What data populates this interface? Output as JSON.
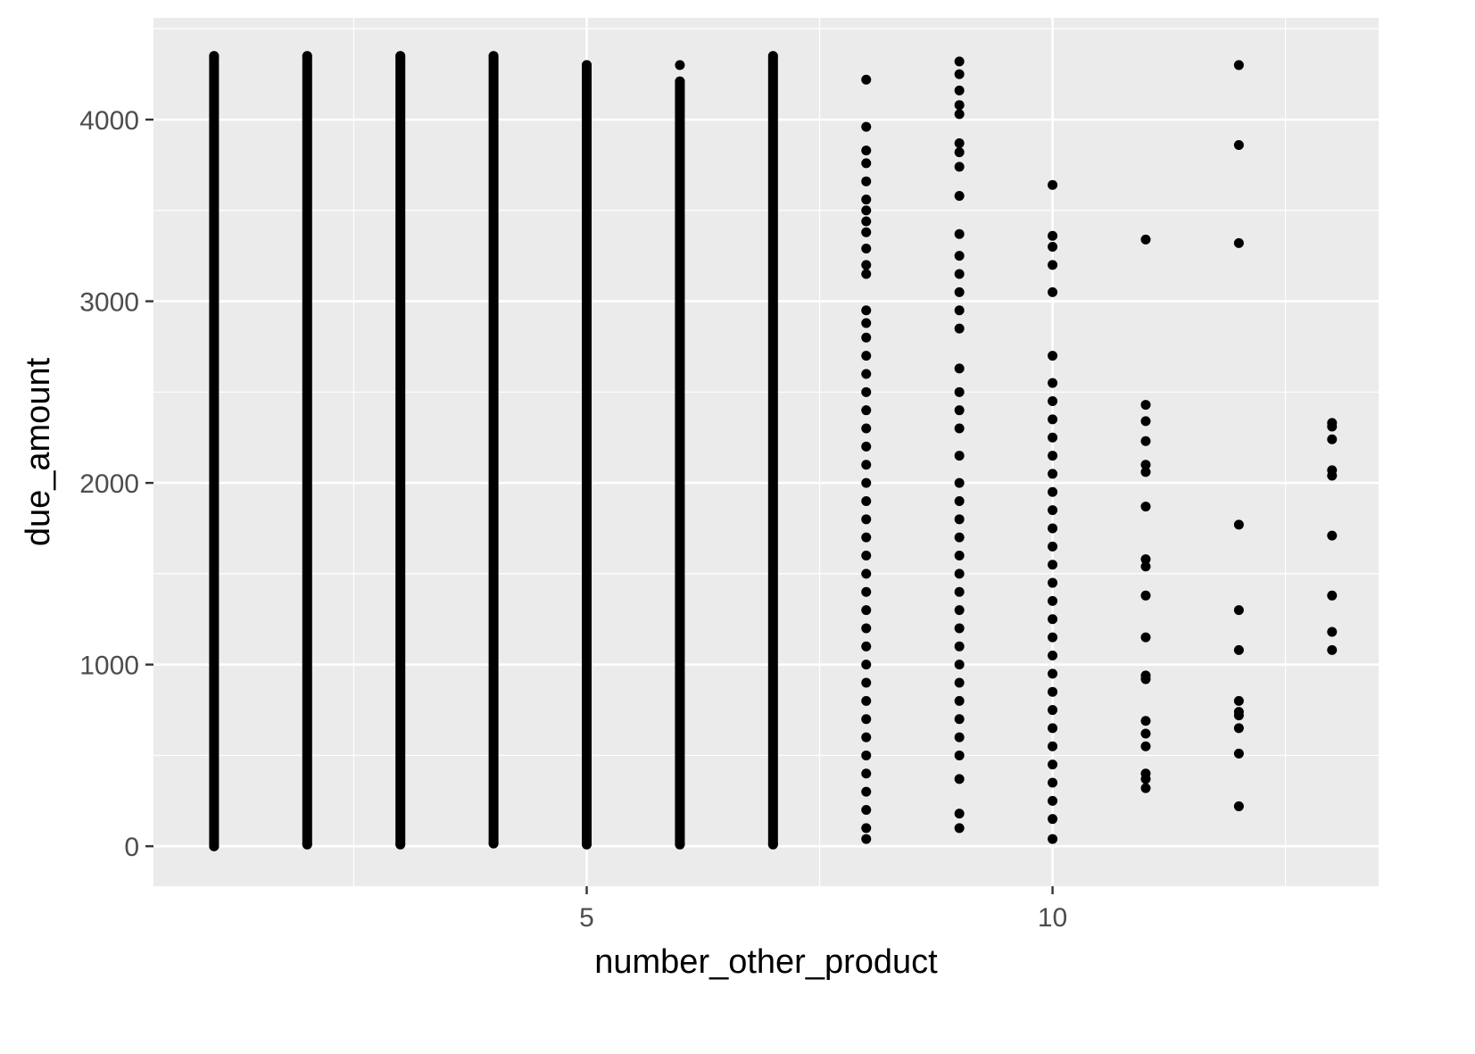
{
  "chart_data": {
    "type": "scatter",
    "title": "",
    "xlabel": "number_other_product",
    "ylabel": "due_amount",
    "xlim": [
      0.35,
      13.5
    ],
    "ylim": [
      -220,
      4560
    ],
    "x_ticks": [
      5,
      10
    ],
    "x_tick_labels": [
      "5",
      "10"
    ],
    "x_minor_grid": [
      2.5,
      7.5,
      12.5
    ],
    "y_ticks": [
      0,
      1000,
      2000,
      3000,
      4000
    ],
    "y_tick_labels": [
      "0",
      "1000",
      "2000",
      "3000",
      "4000"
    ],
    "y_minor_grid": [
      500,
      1500,
      2500,
      3500,
      4500
    ],
    "grid": true,
    "legend": "none",
    "colors": {
      "panel": "#ebebeb",
      "grid": "#ffffff",
      "point": "#000000",
      "tick_text": "#4d4d4d",
      "title_text": "#000000"
    },
    "series": [
      {
        "points": [
          {
            "x": 1,
            "y": 0
          },
          {
            "x": 1,
            "y": 4350
          },
          {
            "x": 2,
            "y": 10
          },
          {
            "x": 2,
            "y": 4350
          },
          {
            "x": 3,
            "y": 10
          },
          {
            "x": 3,
            "y": 4350
          },
          {
            "x": 4,
            "y": 15
          },
          {
            "x": 4,
            "y": 4350
          },
          {
            "x": 5,
            "y": 10
          },
          {
            "x": 5,
            "y": 4300
          },
          {
            "x": 6,
            "y": 10
          },
          {
            "x": 6,
            "y": 4300
          },
          {
            "x": 6,
            "y": 4210
          },
          {
            "x": 7,
            "y": 10
          },
          {
            "x": 7,
            "y": 4350
          },
          {
            "x": 8,
            "y": 4220
          },
          {
            "x": 8,
            "y": 3960
          },
          {
            "x": 8,
            "y": 3830
          },
          {
            "x": 8,
            "y": 3760
          },
          {
            "x": 8,
            "y": 3660
          },
          {
            "x": 8,
            "y": 3560
          },
          {
            "x": 8,
            "y": 3500
          },
          {
            "x": 8,
            "y": 3440
          },
          {
            "x": 8,
            "y": 3380
          },
          {
            "x": 8,
            "y": 3290
          },
          {
            "x": 8,
            "y": 3200
          },
          {
            "x": 8,
            "y": 3150
          },
          {
            "x": 8,
            "y": 2950
          },
          {
            "x": 8,
            "y": 2880
          },
          {
            "x": 8,
            "y": 2800
          },
          {
            "x": 8,
            "y": 2700
          },
          {
            "x": 8,
            "y": 2600
          },
          {
            "x": 8,
            "y": 2500
          },
          {
            "x": 8,
            "y": 2400
          },
          {
            "x": 8,
            "y": 2300
          },
          {
            "x": 8,
            "y": 2200
          },
          {
            "x": 8,
            "y": 2100
          },
          {
            "x": 8,
            "y": 2000
          },
          {
            "x": 8,
            "y": 1900
          },
          {
            "x": 8,
            "y": 1800
          },
          {
            "x": 8,
            "y": 1700
          },
          {
            "x": 8,
            "y": 1600
          },
          {
            "x": 8,
            "y": 1500
          },
          {
            "x": 8,
            "y": 1400
          },
          {
            "x": 8,
            "y": 1300
          },
          {
            "x": 8,
            "y": 1200
          },
          {
            "x": 8,
            "y": 1100
          },
          {
            "x": 8,
            "y": 1000
          },
          {
            "x": 8,
            "y": 900
          },
          {
            "x": 8,
            "y": 800
          },
          {
            "x": 8,
            "y": 700
          },
          {
            "x": 8,
            "y": 600
          },
          {
            "x": 8,
            "y": 500
          },
          {
            "x": 8,
            "y": 400
          },
          {
            "x": 8,
            "y": 300
          },
          {
            "x": 8,
            "y": 200
          },
          {
            "x": 8,
            "y": 100
          },
          {
            "x": 8,
            "y": 40
          },
          {
            "x": 9,
            "y": 4320
          },
          {
            "x": 9,
            "y": 4250
          },
          {
            "x": 9,
            "y": 4160
          },
          {
            "x": 9,
            "y": 4080
          },
          {
            "x": 9,
            "y": 4030
          },
          {
            "x": 9,
            "y": 3870
          },
          {
            "x": 9,
            "y": 3820
          },
          {
            "x": 9,
            "y": 3740
          },
          {
            "x": 9,
            "y": 3580
          },
          {
            "x": 9,
            "y": 3370
          },
          {
            "x": 9,
            "y": 3250
          },
          {
            "x": 9,
            "y": 3150
          },
          {
            "x": 9,
            "y": 3050
          },
          {
            "x": 9,
            "y": 2950
          },
          {
            "x": 9,
            "y": 2850
          },
          {
            "x": 9,
            "y": 2630
          },
          {
            "x": 9,
            "y": 2500
          },
          {
            "x": 9,
            "y": 2400
          },
          {
            "x": 9,
            "y": 2300
          },
          {
            "x": 9,
            "y": 2150
          },
          {
            "x": 9,
            "y": 2000
          },
          {
            "x": 9,
            "y": 1900
          },
          {
            "x": 9,
            "y": 1800
          },
          {
            "x": 9,
            "y": 1700
          },
          {
            "x": 9,
            "y": 1600
          },
          {
            "x": 9,
            "y": 1500
          },
          {
            "x": 9,
            "y": 1400
          },
          {
            "x": 9,
            "y": 1300
          },
          {
            "x": 9,
            "y": 1200
          },
          {
            "x": 9,
            "y": 1100
          },
          {
            "x": 9,
            "y": 1000
          },
          {
            "x": 9,
            "y": 900
          },
          {
            "x": 9,
            "y": 800
          },
          {
            "x": 9,
            "y": 700
          },
          {
            "x": 9,
            "y": 600
          },
          {
            "x": 9,
            "y": 500
          },
          {
            "x": 9,
            "y": 370
          },
          {
            "x": 9,
            "y": 180
          },
          {
            "x": 9,
            "y": 100
          },
          {
            "x": 10,
            "y": 3640
          },
          {
            "x": 10,
            "y": 3360
          },
          {
            "x": 10,
            "y": 3300
          },
          {
            "x": 10,
            "y": 3200
          },
          {
            "x": 10,
            "y": 3050
          },
          {
            "x": 10,
            "y": 2700
          },
          {
            "x": 10,
            "y": 2550
          },
          {
            "x": 10,
            "y": 2450
          },
          {
            "x": 10,
            "y": 2350
          },
          {
            "x": 10,
            "y": 2250
          },
          {
            "x": 10,
            "y": 2150
          },
          {
            "x": 10,
            "y": 2050
          },
          {
            "x": 10,
            "y": 1950
          },
          {
            "x": 10,
            "y": 1850
          },
          {
            "x": 10,
            "y": 1750
          },
          {
            "x": 10,
            "y": 1650
          },
          {
            "x": 10,
            "y": 1550
          },
          {
            "x": 10,
            "y": 1450
          },
          {
            "x": 10,
            "y": 1350
          },
          {
            "x": 10,
            "y": 1250
          },
          {
            "x": 10,
            "y": 1150
          },
          {
            "x": 10,
            "y": 1050
          },
          {
            "x": 10,
            "y": 950
          },
          {
            "x": 10,
            "y": 850
          },
          {
            "x": 10,
            "y": 750
          },
          {
            "x": 10,
            "y": 650
          },
          {
            "x": 10,
            "y": 550
          },
          {
            "x": 10,
            "y": 450
          },
          {
            "x": 10,
            "y": 350
          },
          {
            "x": 10,
            "y": 250
          },
          {
            "x": 10,
            "y": 150
          },
          {
            "x": 10,
            "y": 40
          },
          {
            "x": 11,
            "y": 3340
          },
          {
            "x": 11,
            "y": 2430
          },
          {
            "x": 11,
            "y": 2340
          },
          {
            "x": 11,
            "y": 2230
          },
          {
            "x": 11,
            "y": 2100
          },
          {
            "x": 11,
            "y": 2060
          },
          {
            "x": 11,
            "y": 1870
          },
          {
            "x": 11,
            "y": 1580
          },
          {
            "x": 11,
            "y": 1540
          },
          {
            "x": 11,
            "y": 1380
          },
          {
            "x": 11,
            "y": 1150
          },
          {
            "x": 11,
            "y": 940
          },
          {
            "x": 11,
            "y": 920
          },
          {
            "x": 11,
            "y": 690
          },
          {
            "x": 11,
            "y": 620
          },
          {
            "x": 11,
            "y": 550
          },
          {
            "x": 11,
            "y": 400
          },
          {
            "x": 11,
            "y": 370
          },
          {
            "x": 11,
            "y": 320
          },
          {
            "x": 12,
            "y": 4300
          },
          {
            "x": 12,
            "y": 3860
          },
          {
            "x": 12,
            "y": 3320
          },
          {
            "x": 12,
            "y": 1770
          },
          {
            "x": 12,
            "y": 1300
          },
          {
            "x": 12,
            "y": 1080
          },
          {
            "x": 12,
            "y": 800
          },
          {
            "x": 12,
            "y": 740
          },
          {
            "x": 12,
            "y": 720
          },
          {
            "x": 12,
            "y": 650
          },
          {
            "x": 12,
            "y": 510
          },
          {
            "x": 12,
            "y": 220
          },
          {
            "x": 13,
            "y": 2330
          },
          {
            "x": 13,
            "y": 2310
          },
          {
            "x": 13,
            "y": 2240
          },
          {
            "x": 13,
            "y": 2070
          },
          {
            "x": 13,
            "y": 2040
          },
          {
            "x": 13,
            "y": 1710
          },
          {
            "x": 13,
            "y": 1380
          },
          {
            "x": 13,
            "y": 1180
          },
          {
            "x": 13,
            "y": 1080
          }
        ],
        "dense_runs": [
          {
            "x": 1,
            "y_min": 0,
            "y_max": 4350
          },
          {
            "x": 2,
            "y_min": 10,
            "y_max": 4350
          },
          {
            "x": 3,
            "y_min": 10,
            "y_max": 4350
          },
          {
            "x": 4,
            "y_min": 15,
            "y_max": 4350
          },
          {
            "x": 5,
            "y_min": 10,
            "y_max": 4300
          },
          {
            "x": 6,
            "y_min": 10,
            "y_max": 4210
          },
          {
            "x": 7,
            "y_min": 10,
            "y_max": 4350
          }
        ]
      }
    ]
  }
}
